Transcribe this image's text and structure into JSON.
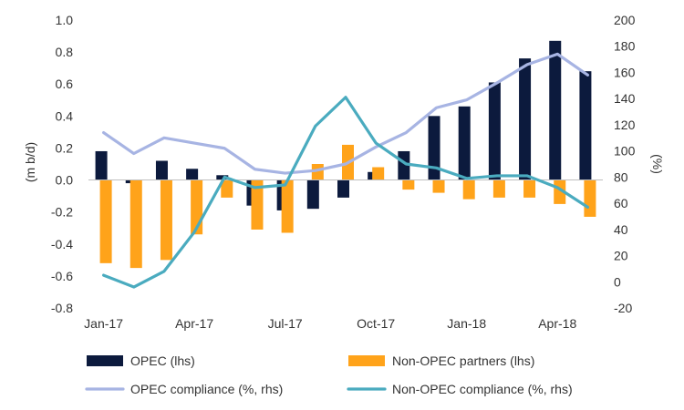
{
  "chart_data": {
    "type": "bar",
    "categories": [
      "Jan-17",
      "Feb-17",
      "Mar-17",
      "Apr-17",
      "May-17",
      "Jun-17",
      "Jul-17",
      "Aug-17",
      "Sep-17",
      "Oct-17",
      "Nov-17",
      "Dec-17",
      "Jan-18",
      "Feb-18",
      "Mar-18",
      "Apr-18",
      "May-18"
    ],
    "x_tick_labels": [
      "Jan-17",
      "Apr-17",
      "Jul-17",
      "Oct-17",
      "Jan-18",
      "Apr-18"
    ],
    "ylabel_left": "(m b/d)",
    "ylabel_right": "(%)",
    "ylim_left": [
      -0.8,
      1.0
    ],
    "ylim_right": [
      -20,
      200
    ],
    "left_ticks": [
      "1.0",
      "0.8",
      "0.6",
      "0.4",
      "0.2",
      "0.0",
      "-0.2",
      "-0.4",
      "-0.6",
      "-0.8"
    ],
    "right_ticks": [
      "200",
      "180",
      "160",
      "140",
      "120",
      "100",
      "80",
      "60",
      "40",
      "20",
      "0",
      "-20"
    ],
    "grid": false,
    "legend_position": "bottom",
    "series": [
      {
        "name": "OPEC (lhs)",
        "kind": "bar",
        "axis": "left",
        "color": "#0c1a3d",
        "values": [
          0.18,
          -0.02,
          0.12,
          0.07,
          0.03,
          -0.16,
          -0.19,
          -0.18,
          -0.11,
          0.05,
          0.18,
          0.4,
          0.46,
          0.61,
          0.76,
          0.87,
          0.68
        ]
      },
      {
        "name": "Non-OPEC partners (lhs)",
        "kind": "bar",
        "axis": "left",
        "color": "#ffa31a",
        "values": [
          -0.52,
          -0.55,
          -0.5,
          -0.34,
          -0.11,
          -0.31,
          -0.33,
          0.1,
          0.22,
          0.08,
          -0.06,
          -0.08,
          -0.12,
          -0.11,
          -0.11,
          -0.15,
          -0.23
        ]
      },
      {
        "name": "OPEC compliance (%, rhs)",
        "kind": "line",
        "axis": "right",
        "color": "#a7b4e3",
        "values": [
          114,
          98,
          110,
          106,
          102,
          86,
          83,
          85,
          90,
          103,
          114,
          133,
          139,
          152,
          166,
          174,
          158
        ]
      },
      {
        "name": "Non-OPEC compliance (%, rhs)",
        "kind": "line",
        "axis": "right",
        "color": "#4aabbf",
        "values": [
          5,
          -4,
          8,
          38,
          80,
          72,
          74,
          119,
          141,
          106,
          90,
          87,
          79,
          81,
          81,
          72,
          57
        ]
      }
    ]
  }
}
